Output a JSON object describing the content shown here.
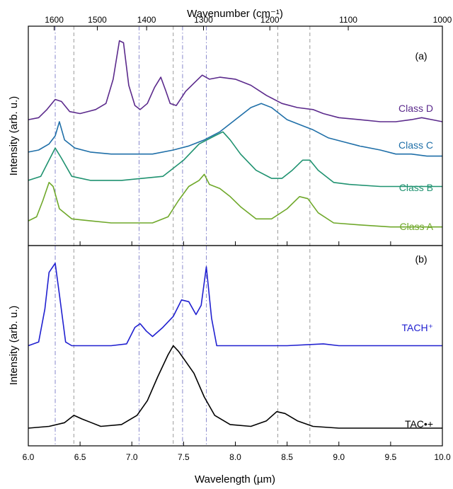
{
  "chart_data": {
    "type": "line",
    "xlabel": "Wavelength (µm)",
    "x2label": "Wavenumber (cm⁻¹)",
    "ylabel": "Intensity (arb. u.)",
    "xlim": [
      6.0,
      10.0
    ],
    "xticks": [
      6.0,
      6.5,
      7.0,
      7.5,
      8.0,
      8.5,
      9.0,
      9.5,
      10.0
    ],
    "xticklabels": [
      "6.0",
      "6.5",
      "7.0",
      "7.5",
      "8.0",
      "8.5",
      "9.0",
      "9.5",
      "10.0"
    ],
    "x2ticks": [
      1600,
      1500,
      1400,
      1300,
      1200,
      1100,
      1000
    ],
    "x2ticklabels": [
      "1600",
      "1500",
      "1400",
      "1300",
      "1200",
      "1100",
      "1000"
    ],
    "reference_lines": [
      {
        "x": 6.26,
        "style": "dash-dot",
        "color": "#8888cc"
      },
      {
        "x": 6.44,
        "style": "dashed",
        "color": "#9a9a9a"
      },
      {
        "x": 7.07,
        "style": "dash-dot",
        "color": "#8888cc"
      },
      {
        "x": 7.4,
        "style": "dashed",
        "color": "#9a9a9a"
      },
      {
        "x": 7.49,
        "style": "dash-dot",
        "color": "#8888cc"
      },
      {
        "x": 7.72,
        "style": "dash-dot",
        "color": "#8888cc"
      },
      {
        "x": 8.41,
        "style": "dashed",
        "color": "#9a9a9a"
      },
      {
        "x": 8.72,
        "style": "dashed",
        "color": "#9a9a9a"
      }
    ],
    "panels": [
      {
        "label": "(a)",
        "ylim": [
          0,
          1
        ],
        "series": [
          {
            "name": "Class D",
            "color": "#5b2a8c",
            "points": [
              [
                6.0,
                0.58
              ],
              [
                6.1,
                0.59
              ],
              [
                6.18,
                0.63
              ],
              [
                6.26,
                0.68
              ],
              [
                6.32,
                0.67
              ],
              [
                6.4,
                0.62
              ],
              [
                6.5,
                0.61
              ],
              [
                6.65,
                0.63
              ],
              [
                6.75,
                0.66
              ],
              [
                6.82,
                0.78
              ],
              [
                6.88,
                0.97
              ],
              [
                6.92,
                0.96
              ],
              [
                6.97,
                0.75
              ],
              [
                7.03,
                0.65
              ],
              [
                7.08,
                0.63
              ],
              [
                7.15,
                0.66
              ],
              [
                7.22,
                0.74
              ],
              [
                7.28,
                0.79
              ],
              [
                7.33,
                0.72
              ],
              [
                7.37,
                0.66
              ],
              [
                7.43,
                0.65
              ],
              [
                7.52,
                0.72
              ],
              [
                7.6,
                0.76
              ],
              [
                7.68,
                0.8
              ],
              [
                7.75,
                0.78
              ],
              [
                7.85,
                0.79
              ],
              [
                8.0,
                0.78
              ],
              [
                8.15,
                0.75
              ],
              [
                8.3,
                0.7
              ],
              [
                8.45,
                0.66
              ],
              [
                8.6,
                0.64
              ],
              [
                8.75,
                0.63
              ],
              [
                8.85,
                0.61
              ],
              [
                9.0,
                0.59
              ],
              [
                9.2,
                0.58
              ],
              [
                9.4,
                0.57
              ],
              [
                9.55,
                0.57
              ],
              [
                9.7,
                0.58
              ],
              [
                9.8,
                0.59
              ],
              [
                9.9,
                0.58
              ],
              [
                10.0,
                0.57
              ]
            ]
          },
          {
            "name": "Class C",
            "color": "#1f6fa8",
            "points": [
              [
                6.0,
                0.42
              ],
              [
                6.1,
                0.43
              ],
              [
                6.2,
                0.46
              ],
              [
                6.26,
                0.5
              ],
              [
                6.3,
                0.57
              ],
              [
                6.35,
                0.48
              ],
              [
                6.45,
                0.44
              ],
              [
                6.6,
                0.42
              ],
              [
                6.8,
                0.41
              ],
              [
                7.0,
                0.41
              ],
              [
                7.2,
                0.41
              ],
              [
                7.4,
                0.43
              ],
              [
                7.55,
                0.45
              ],
              [
                7.7,
                0.48
              ],
              [
                7.85,
                0.52
              ],
              [
                8.0,
                0.58
              ],
              [
                8.15,
                0.64
              ],
              [
                8.25,
                0.66
              ],
              [
                8.35,
                0.64
              ],
              [
                8.5,
                0.58
              ],
              [
                8.65,
                0.55
              ],
              [
                8.75,
                0.53
              ],
              [
                8.9,
                0.49
              ],
              [
                9.05,
                0.47
              ],
              [
                9.2,
                0.45
              ],
              [
                9.4,
                0.43
              ],
              [
                9.55,
                0.41
              ],
              [
                9.7,
                0.41
              ],
              [
                9.85,
                0.4
              ],
              [
                10.0,
                0.4
              ]
            ]
          },
          {
            "name": "Class B",
            "color": "#1f9270",
            "points": [
              [
                6.0,
                0.28
              ],
              [
                6.12,
                0.3
              ],
              [
                6.2,
                0.38
              ],
              [
                6.26,
                0.44
              ],
              [
                6.32,
                0.39
              ],
              [
                6.42,
                0.3
              ],
              [
                6.6,
                0.28
              ],
              [
                6.9,
                0.28
              ],
              [
                7.1,
                0.29
              ],
              [
                7.3,
                0.3
              ],
              [
                7.5,
                0.38
              ],
              [
                7.65,
                0.46
              ],
              [
                7.8,
                0.5
              ],
              [
                7.88,
                0.52
              ],
              [
                7.95,
                0.48
              ],
              [
                8.05,
                0.41
              ],
              [
                8.2,
                0.33
              ],
              [
                8.35,
                0.29
              ],
              [
                8.45,
                0.29
              ],
              [
                8.55,
                0.33
              ],
              [
                8.65,
                0.38
              ],
              [
                8.72,
                0.38
              ],
              [
                8.8,
                0.33
              ],
              [
                8.95,
                0.27
              ],
              [
                9.1,
                0.26
              ],
              [
                9.4,
                0.25
              ],
              [
                9.7,
                0.25
              ],
              [
                10.0,
                0.25
              ]
            ]
          },
          {
            "name": "Class A",
            "color": "#6fa82a",
            "points": [
              [
                6.0,
                0.08
              ],
              [
                6.08,
                0.1
              ],
              [
                6.14,
                0.18
              ],
              [
                6.2,
                0.27
              ],
              [
                6.24,
                0.25
              ],
              [
                6.3,
                0.14
              ],
              [
                6.42,
                0.09
              ],
              [
                6.6,
                0.08
              ],
              [
                6.8,
                0.07
              ],
              [
                7.0,
                0.07
              ],
              [
                7.2,
                0.07
              ],
              [
                7.35,
                0.1
              ],
              [
                7.45,
                0.18
              ],
              [
                7.55,
                0.25
              ],
              [
                7.65,
                0.28
              ],
              [
                7.7,
                0.31
              ],
              [
                7.75,
                0.26
              ],
              [
                7.85,
                0.24
              ],
              [
                7.95,
                0.2
              ],
              [
                8.05,
                0.15
              ],
              [
                8.2,
                0.09
              ],
              [
                8.35,
                0.09
              ],
              [
                8.5,
                0.14
              ],
              [
                8.62,
                0.2
              ],
              [
                8.7,
                0.19
              ],
              [
                8.8,
                0.12
              ],
              [
                8.95,
                0.07
              ],
              [
                9.2,
                0.06
              ],
              [
                9.5,
                0.05
              ],
              [
                9.8,
                0.05
              ],
              [
                10.0,
                0.05
              ]
            ]
          }
        ]
      },
      {
        "label": "(b)",
        "ylim": [
          0,
          1
        ],
        "series": [
          {
            "name": "TACH⁺",
            "color": "#2020d0",
            "points": [
              [
                6.0,
                0.5
              ],
              [
                6.1,
                0.52
              ],
              [
                6.16,
                0.7
              ],
              [
                6.2,
                0.9
              ],
              [
                6.26,
                0.95
              ],
              [
                6.3,
                0.78
              ],
              [
                6.36,
                0.52
              ],
              [
                6.42,
                0.5
              ],
              [
                6.6,
                0.5
              ],
              [
                6.8,
                0.5
              ],
              [
                6.95,
                0.51
              ],
              [
                7.03,
                0.6
              ],
              [
                7.08,
                0.62
              ],
              [
                7.14,
                0.58
              ],
              [
                7.2,
                0.55
              ],
              [
                7.3,
                0.6
              ],
              [
                7.4,
                0.66
              ],
              [
                7.48,
                0.75
              ],
              [
                7.55,
                0.74
              ],
              [
                7.62,
                0.67
              ],
              [
                7.67,
                0.72
              ],
              [
                7.72,
                0.93
              ],
              [
                7.77,
                0.65
              ],
              [
                7.82,
                0.5
              ],
              [
                8.0,
                0.5
              ],
              [
                8.5,
                0.5
              ],
              [
                8.85,
                0.51
              ],
              [
                9.0,
                0.5
              ],
              [
                9.5,
                0.5
              ],
              [
                10.0,
                0.5
              ]
            ]
          },
          {
            "name": "TAC•+",
            "color": "#000000",
            "points": [
              [
                6.0,
                0.05
              ],
              [
                6.2,
                0.06
              ],
              [
                6.35,
                0.08
              ],
              [
                6.44,
                0.12
              ],
              [
                6.52,
                0.1
              ],
              [
                6.7,
                0.06
              ],
              [
                6.9,
                0.07
              ],
              [
                7.05,
                0.12
              ],
              [
                7.15,
                0.2
              ],
              [
                7.25,
                0.33
              ],
              [
                7.35,
                0.45
              ],
              [
                7.4,
                0.5
              ],
              [
                7.45,
                0.47
              ],
              [
                7.5,
                0.43
              ],
              [
                7.6,
                0.35
              ],
              [
                7.7,
                0.22
              ],
              [
                7.8,
                0.12
              ],
              [
                7.95,
                0.07
              ],
              [
                8.15,
                0.06
              ],
              [
                8.3,
                0.09
              ],
              [
                8.4,
                0.14
              ],
              [
                8.48,
                0.13
              ],
              [
                8.6,
                0.09
              ],
              [
                8.75,
                0.06
              ],
              [
                9.0,
                0.05
              ],
              [
                9.5,
                0.05
              ],
              [
                10.0,
                0.05
              ]
            ]
          }
        ]
      }
    ]
  }
}
